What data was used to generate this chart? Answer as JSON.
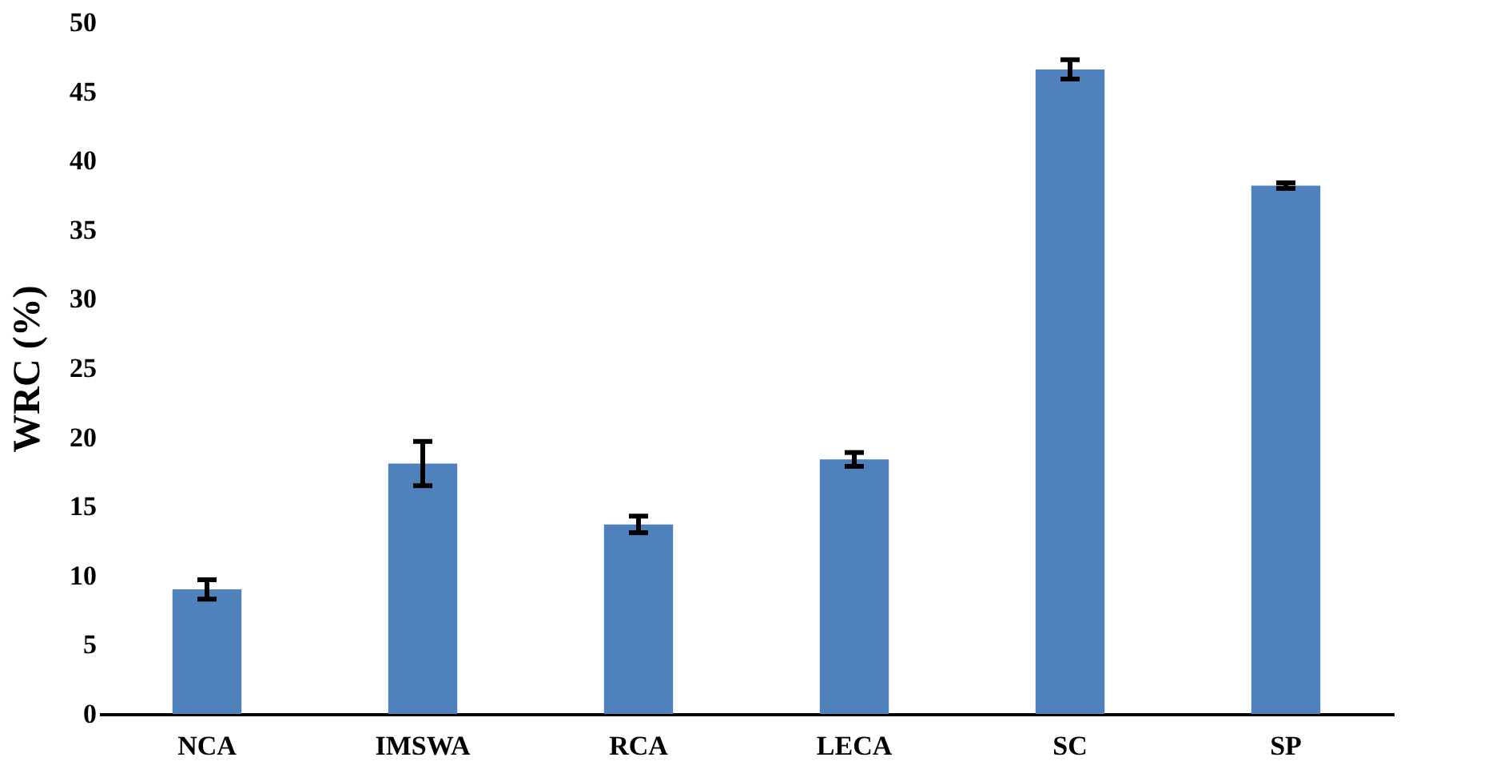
{
  "chart_data": {
    "type": "bar",
    "ylabel": "WRC (%)",
    "categories": [
      "NCA",
      "IMSWA",
      "RCA",
      "LECA",
      "SC",
      "SP"
    ],
    "values": [
      9.0,
      18.1,
      13.7,
      18.4,
      46.6,
      38.2
    ],
    "errors": [
      0.7,
      1.6,
      0.6,
      0.5,
      0.7,
      0.2
    ],
    "color": "#4f81bd",
    "ylim": [
      0,
      50
    ],
    "yticks": [
      0,
      5,
      10,
      15,
      20,
      25,
      30,
      35,
      40,
      45,
      50
    ],
    "grid": false
  }
}
